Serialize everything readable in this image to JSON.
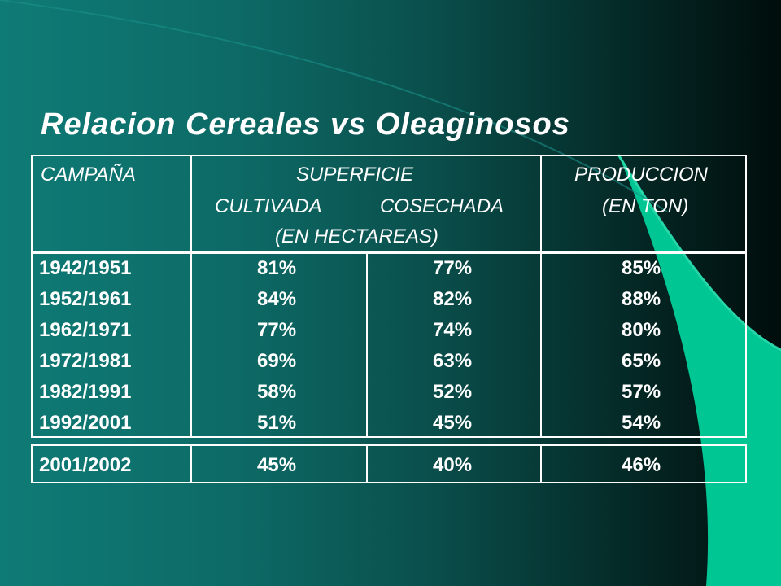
{
  "slide": {
    "title": "Relacion Cereales vs Oleaginosos",
    "colors": {
      "text": "#ffffff",
      "bg_left": "#0f7b76",
      "bg_right": "#000d0c",
      "accent_shape": "#00c693"
    }
  },
  "table": {
    "headers": {
      "campana": "CAMPAÑA",
      "superficie": "SUPERFICIE",
      "cultivada": "CULTIVADA",
      "cosechada": "COSECHADA",
      "hectareas": "(EN HECTAREAS)",
      "produccion": "PRODUCCION",
      "ton": "(EN TON)"
    },
    "rows": [
      {
        "campana": "1942/1951",
        "cultivada": "81%",
        "cosechada": "77%",
        "produccion": "85%"
      },
      {
        "campana": "1952/1961",
        "cultivada": "84%",
        "cosechada": "82%",
        "produccion": "88%"
      },
      {
        "campana": "1962/1971",
        "cultivada": "77%",
        "cosechada": "74%",
        "produccion": "80%"
      },
      {
        "campana": "1972/1981",
        "cultivada": "69%",
        "cosechada": "63%",
        "produccion": "65%"
      },
      {
        "campana": "1982/1991",
        "cultivada": "58%",
        "cosechada": "52%",
        "produccion": "57%"
      },
      {
        "campana": "1992/2001",
        "cultivada": "51%",
        "cosechada": "45%",
        "produccion": "54%"
      }
    ],
    "total_row": {
      "campana": "2001/2002",
      "cultivada": "45%",
      "cosechada": "40%",
      "produccion": "46%"
    }
  }
}
